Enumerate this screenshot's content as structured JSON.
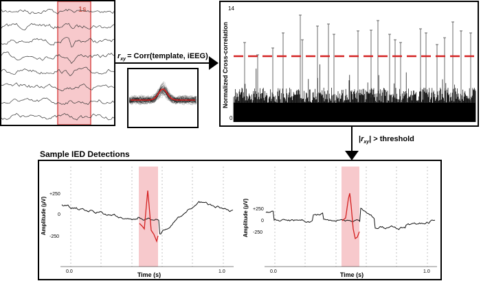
{
  "eeg_panel": {
    "window_label": "1s"
  },
  "correlation_step": {
    "r": "r",
    "r_subscript": "xy",
    "formula": "= Corr(template, iEEG)"
  },
  "xcorr_panel": {
    "ylabel": "Normalized Cross-correlation",
    "y_max_label": "14",
    "y_min_label": "0"
  },
  "threshold_step": {
    "bar_open": "|",
    "r": "r",
    "r_subscript": "xy",
    "text": "| > threshold"
  },
  "detections_panel": {
    "title": "Sample IED Detections",
    "plots": [
      {
        "ylabel": "Amplitude (µV)",
        "xlabel": "Time (s)",
        "yticks": [
          "+250",
          "0",
          "-250"
        ],
        "xticks": [
          "0.0",
          "1.0"
        ]
      },
      {
        "ylabel": "Amplitude (µV)",
        "xlabel": "Time (s)",
        "yticks": [
          "+250",
          "0",
          "-250"
        ],
        "xticks": [
          "0.0",
          "1.0"
        ]
      }
    ]
  },
  "colors": {
    "highlight_fill": "#f7c9cc",
    "highlight_edge": "#d94a4a",
    "threshold_line": "#d42222",
    "template_mean": "#e02020",
    "frame": "#000000"
  }
}
